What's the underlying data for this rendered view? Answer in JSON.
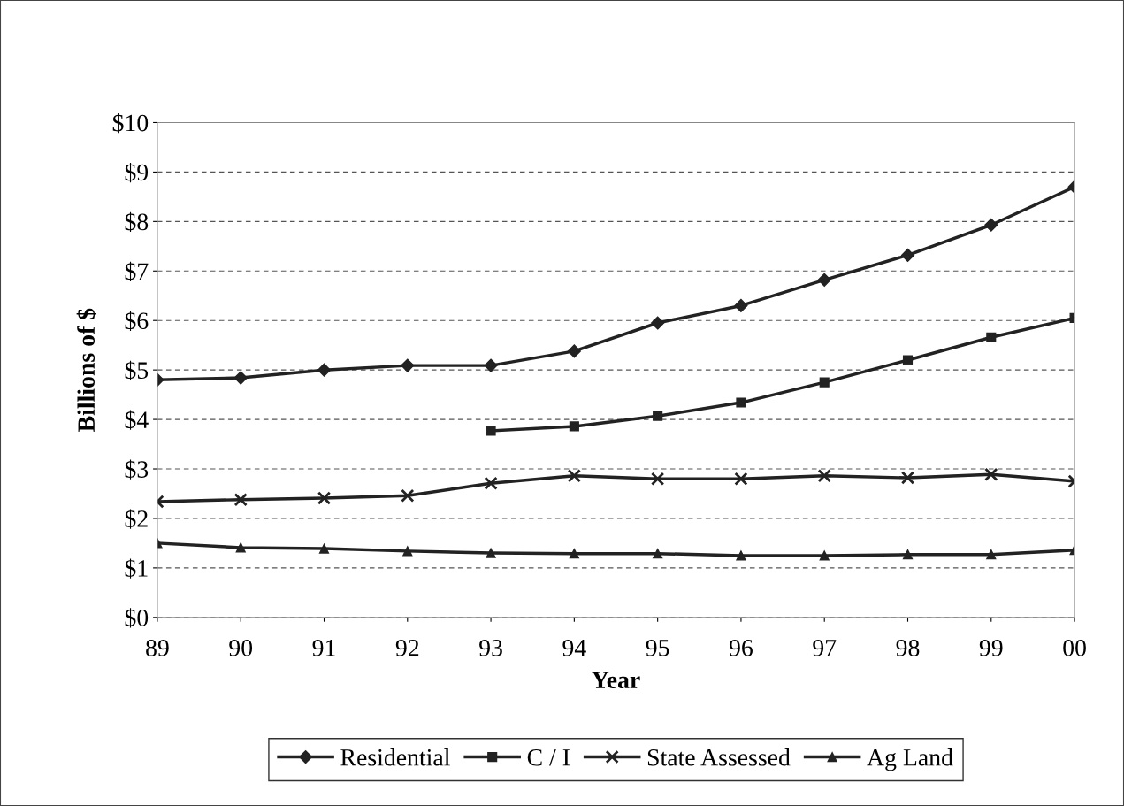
{
  "chart_data": {
    "type": "line",
    "xlabel": "Year",
    "ylabel": "Billions of $",
    "categories": [
      "89",
      "90",
      "91",
      "92",
      "93",
      "94",
      "95",
      "96",
      "97",
      "98",
      "99",
      "00"
    ],
    "series": [
      {
        "name": "Residential",
        "color": "#222222",
        "marker": "diamond",
        "values": [
          4.8,
          4.84,
          5.0,
          5.09,
          5.09,
          5.38,
          5.95,
          6.3,
          6.82,
          7.32,
          7.93,
          8.7
        ]
      },
      {
        "name": "C / I",
        "color": "#222222",
        "marker": "square",
        "values": [
          null,
          null,
          null,
          null,
          3.77,
          3.86,
          4.07,
          4.34,
          4.75,
          5.2,
          5.66,
          6.05
        ]
      },
      {
        "name": "State Assessed",
        "color": "#222222",
        "marker": "cross",
        "values": [
          2.34,
          2.38,
          2.41,
          2.46,
          2.71,
          2.86,
          2.8,
          2.8,
          2.86,
          2.82,
          2.89,
          2.75
        ]
      },
      {
        "name": "Ag Land",
        "color": "#222222",
        "marker": "triangle",
        "values": [
          1.5,
          1.41,
          1.39,
          1.34,
          1.3,
          1.29,
          1.29,
          1.25,
          1.25,
          1.27,
          1.27,
          1.36
        ]
      }
    ],
    "ylim": [
      0,
      10
    ],
    "yticks": [
      {
        "value": 0,
        "label": "$0"
      },
      {
        "value": 1,
        "label": "$1"
      },
      {
        "value": 2,
        "label": "$2"
      },
      {
        "value": 3,
        "label": "$3"
      },
      {
        "value": 4,
        "label": "$4"
      },
      {
        "value": 5,
        "label": "$5"
      },
      {
        "value": 6,
        "label": "$6"
      },
      {
        "value": 7,
        "label": "$7"
      },
      {
        "value": 8,
        "label": "$8"
      },
      {
        "value": 9,
        "label": "$9"
      },
      {
        "value": 10,
        "label": "$10"
      }
    ],
    "grid": "y",
    "legend": "bottom",
    "line_style": "solid"
  }
}
